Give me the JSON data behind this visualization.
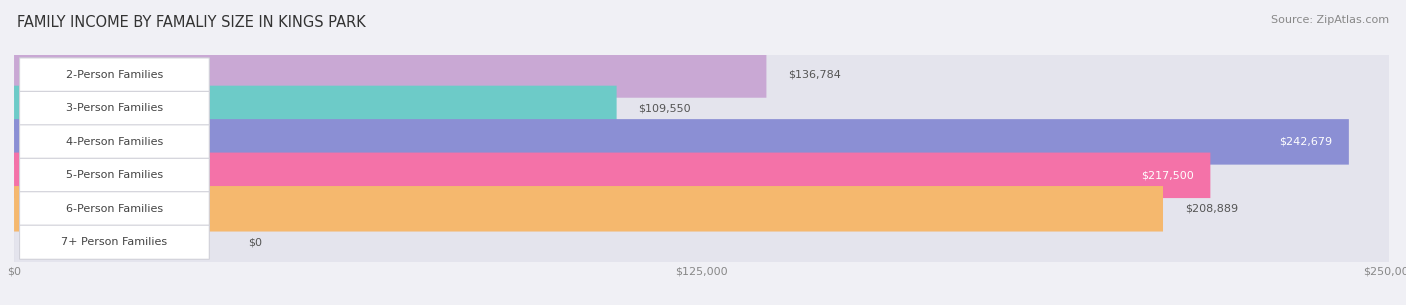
{
  "title": "FAMILY INCOME BY FAMALIY SIZE IN KINGS PARK",
  "source": "Source: ZipAtlas.com",
  "categories": [
    "2-Person Families",
    "3-Person Families",
    "4-Person Families",
    "5-Person Families",
    "6-Person Families",
    "7+ Person Families"
  ],
  "values": [
    136784,
    109550,
    242679,
    217500,
    208889,
    0
  ],
  "bar_colors": [
    "#c9a8d4",
    "#6dcbc8",
    "#8b8fd4",
    "#f472a8",
    "#f5b86e",
    "#f4b8c0"
  ],
  "bar_bg_color": "#e4e4ed",
  "label_bg_color": "#ffffff",
  "value_label_inside_colors": [
    "#555555",
    "#555555",
    "#ffffff",
    "#ffffff",
    "#ffffff",
    "#555555"
  ],
  "xmax": 250000,
  "xtick_labels": [
    "$0",
    "$125,000",
    "$250,000"
  ],
  "background_color": "#f0f0f5",
  "title_fontsize": 10.5,
  "source_fontsize": 8,
  "bar_label_fontsize": 8,
  "value_fontsize": 8
}
